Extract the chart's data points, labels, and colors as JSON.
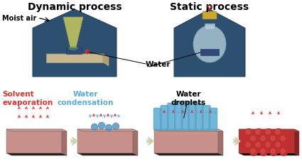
{
  "title_dynamic": "Dynamic process",
  "title_static": "Static process",
  "label_moist_air": "Moist air",
  "label_water": "Water",
  "label_water_condensation": "Water\ncondensation",
  "label_solvent_evaporation": "Solvent\nevaporation",
  "label_water_droplets": "Water\ndroplets",
  "bg_color": "#ffffff",
  "box_color": "#2d5070",
  "box_edge_color": "#1a3a55",
  "slab_pink": "#cc8880",
  "slab_pink_side": "#a06860",
  "slab_dark": "#2a2020",
  "arrow_red": "#e03030",
  "arrow_blue": "#5aabdc",
  "bottle_body": "#a8c8d8",
  "bottle_cap": "#c8a830",
  "funnel_color": "#c8c860",
  "sample_blue": "#304880",
  "step4_red": "#c03030",
  "step4_side": "#902020",
  "inter_arrow": "#d0d0b0",
  "title_fontsize": 10,
  "label_fontsize": 7.5,
  "small_fontsize": 7
}
